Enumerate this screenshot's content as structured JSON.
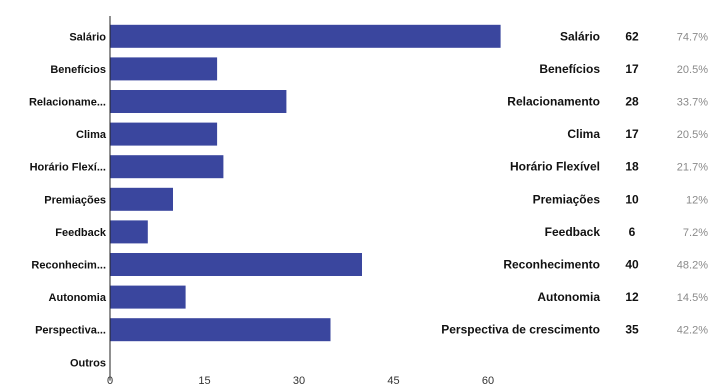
{
  "chart_data": {
    "type": "bar",
    "orientation": "horizontal",
    "categories": [
      "Salário",
      "Benefícios",
      "Relacioname...",
      "Clima",
      "Horário Flexí...",
      "Premiações",
      "Feedback",
      "Reconhecim...",
      "Autonomia",
      "Perspectiva...",
      "Outros"
    ],
    "values": [
      62,
      17,
      28,
      17,
      18,
      10,
      6,
      40,
      12,
      35,
      0
    ],
    "xlim": [
      0,
      60
    ],
    "xticks": [
      "0",
      "15",
      "30",
      "45",
      "60"
    ],
    "grid": false,
    "bar_color": "#3a469e",
    "legend": [
      {
        "name": "Salário",
        "count": "62",
        "percent": "74.7%"
      },
      {
        "name": "Benefícios",
        "count": "17",
        "percent": "20.5%"
      },
      {
        "name": "Relacionamento",
        "count": "28",
        "percent": "33.7%"
      },
      {
        "name": "Clima",
        "count": "17",
        "percent": "20.5%"
      },
      {
        "name": "Horário Flexível",
        "count": "18",
        "percent": "21.7%"
      },
      {
        "name": "Premiações",
        "count": "10",
        "percent": "12%"
      },
      {
        "name": "Feedback",
        "count": "6",
        "percent": "7.2%"
      },
      {
        "name": "Reconhecimento",
        "count": "40",
        "percent": "48.2%"
      },
      {
        "name": "Autonomia",
        "count": "12",
        "percent": "14.5%"
      },
      {
        "name": "Perspectiva de crescimento",
        "count": "35",
        "percent": "42.2%"
      }
    ],
    "legend_placement": "right"
  }
}
